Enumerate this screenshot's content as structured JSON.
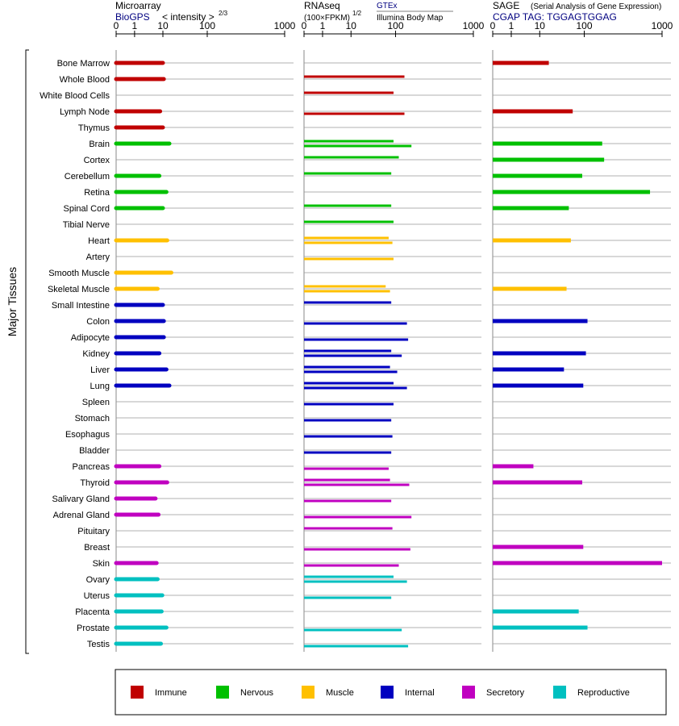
{
  "headers": {
    "microarray": {
      "title": "Microarray",
      "source": "BioGPS",
      "intensity": "< intensity >",
      "exponent": "2/3"
    },
    "rnaseq": {
      "title": "RNAseq",
      "unit": "(100×FPKM)",
      "exponent": "1/2",
      "source1": "GTEx",
      "source2": "Illumina Body Map"
    },
    "sage": {
      "title": "SAGE",
      "subtitle": "(Serial Analysis of Gene Expression)",
      "tag": "CGAP TAG: TGGAGTGGAG"
    }
  },
  "side_label": "Major Tissues",
  "chart_data": {
    "type": "bar",
    "orientation": "horizontal",
    "x_ticks": [
      "0",
      "1",
      "10",
      "100",
      "1000"
    ],
    "tissues": [
      "Bone Marrow",
      "Whole Blood",
      "White Blood Cells",
      "Lymph Node",
      "Thymus",
      "Brain",
      "Cortex",
      "Cerebellum",
      "Retina",
      "Spinal Cord",
      "Tibial Nerve",
      "Heart",
      "Artery",
      "Smooth Muscle",
      "Skeletal Muscle",
      "Small Intestine",
      "Colon",
      "Adipocyte",
      "Kidney",
      "Liver",
      "Lung",
      "Spleen",
      "Stomach",
      "Esophagus",
      "Bladder",
      "Pancreas",
      "Thyroid",
      "Salivary Gland",
      "Adrenal Gland",
      "Pituitary",
      "Breast",
      "Skin",
      "Ovary",
      "Uterus",
      "Placenta",
      "Prostate",
      "Testis"
    ],
    "groups": [
      "Immune",
      "Immune",
      "Immune",
      "Immune",
      "Immune",
      "Nervous",
      "Nervous",
      "Nervous",
      "Nervous",
      "Nervous",
      "Nervous",
      "Muscle",
      "Muscle",
      "Muscle",
      "Muscle",
      "Internal",
      "Internal",
      "Internal",
      "Internal",
      "Internal",
      "Internal",
      "Internal",
      "Internal",
      "Internal",
      "Internal",
      "Secretory",
      "Secretory",
      "Secretory",
      "Secretory",
      "Secretory",
      "Secretory",
      "Secretory",
      "Reproductive",
      "Reproductive",
      "Reproductive",
      "Reproductive",
      "Reproductive"
    ],
    "group_colors": {
      "Immune": "#c00000",
      "Nervous": "#00c000",
      "Muscle": "#ffc000",
      "Internal": "#0000c0",
      "Secretory": "#c000c0",
      "Reproductive": "#00c0c0"
    },
    "microarray": [
      10,
      10.5,
      null,
      8,
      10,
      14,
      null,
      7.5,
      12,
      10,
      null,
      12.5,
      null,
      15.5,
      6.5,
      10,
      10.5,
      10.5,
      7.5,
      12,
      14,
      null,
      null,
      null,
      null,
      7.5,
      12.5,
      5.5,
      7,
      null,
      null,
      6,
      6.5,
      9.5,
      9,
      12,
      8.5
    ],
    "rnaseq_gtex": [
      null,
      130,
      null,
      130,
      null,
      null,
      100,
      null,
      null,
      null,
      null,
      null,
      null,
      null,
      null,
      null,
      110,
      115,
      110,
      70,
      100,
      null,
      null,
      null,
      null,
      null,
      110,
      null,
      110,
      null,
      null,
      null,
      null,
      null,
      null,
      null,
      null
    ],
    "rnaseq_gtex_note": "",
    "rnaseq_upper": [
      null,
      130,
      90,
      null,
      null,
      90,
      110,
      80,
      null,
      80,
      90,
      70,
      null,
      null,
      60,
      80,
      null,
      null,
      80,
      75,
      90,
      null,
      null,
      null,
      null,
      null,
      75,
      null,
      null,
      85,
      null,
      null,
      90,
      null,
      null,
      null,
      null
    ],
    "rnaseq_lower": [
      null,
      null,
      null,
      130,
      null,
      160,
      null,
      null,
      null,
      null,
      null,
      85,
      90,
      null,
      75,
      null,
      140,
      145,
      120,
      105,
      140,
      90,
      80,
      85,
      80,
      70,
      150,
      80,
      160,
      null,
      155,
      110,
      140,
      80,
      null,
      120,
      145
    ],
    "sage": [
      16,
      null,
      null,
      55,
      null,
      170,
      180,
      90,
      700,
      45,
      null,
      50,
      null,
      null,
      40,
      null,
      110,
      null,
      105,
      35,
      95,
      null,
      null,
      null,
      null,
      6,
      90,
      null,
      null,
      null,
      95,
      1000,
      null,
      null,
      75,
      110,
      null
    ]
  },
  "legend": [
    {
      "label": "Immune",
      "color": "#c00000"
    },
    {
      "label": "Nervous",
      "color": "#00c000"
    },
    {
      "label": "Muscle",
      "color": "#ffc000"
    },
    {
      "label": "Internal",
      "color": "#0000c0"
    },
    {
      "label": "Secretory",
      "color": "#c000c0"
    },
    {
      "label": "Reproductive",
      "color": "#00c0c0"
    }
  ]
}
